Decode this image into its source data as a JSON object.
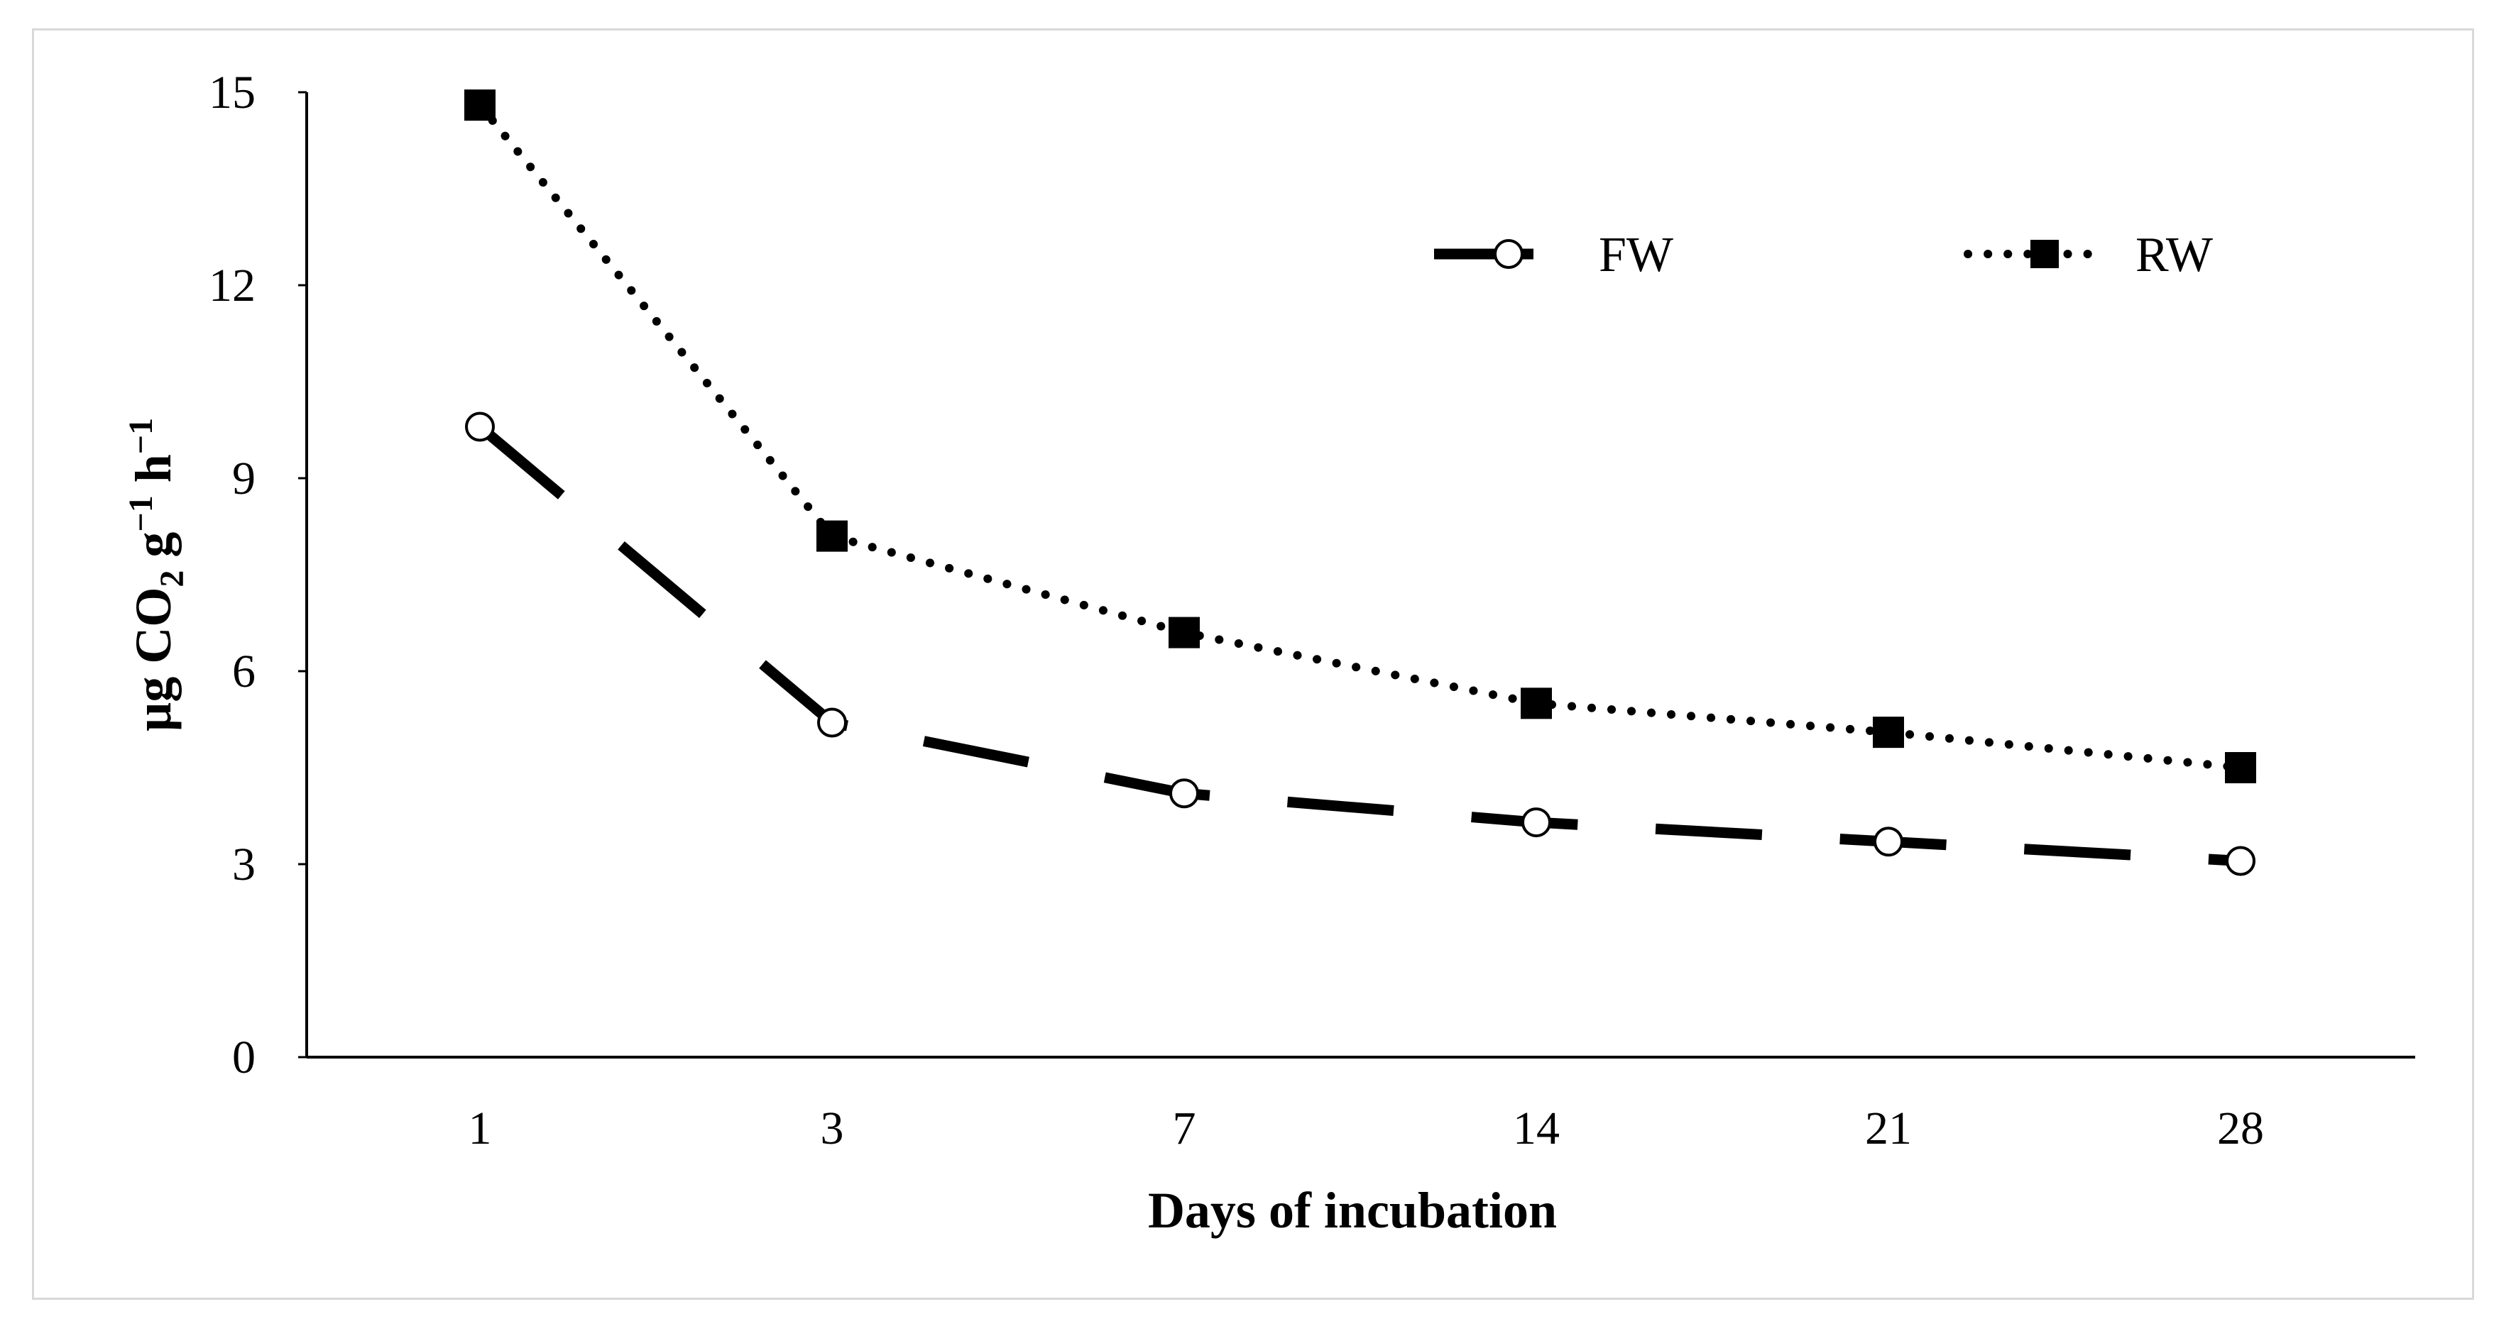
{
  "chart_data": {
    "type": "line",
    "title": "",
    "xlabel": "Days of incubation",
    "ylabel": {
      "prefix": "µg CO",
      "sub": "2",
      "mid": " g",
      "sup1": "−1",
      "mid2": " h",
      "sup2": "−1"
    },
    "categories": [
      "1",
      "3",
      "7",
      "14",
      "21",
      "28"
    ],
    "ylim": [
      0,
      15
    ],
    "yticks": [
      0,
      3,
      6,
      9,
      12,
      15
    ],
    "grid": false,
    "legend_position": "top-right",
    "series": [
      {
        "name": "FW",
        "line_style": "long-dash",
        "marker": "open-circle",
        "values": [
          9.8,
          5.2,
          4.1,
          3.65,
          3.35,
          3.05
        ]
      },
      {
        "name": "RW",
        "line_style": "dotted",
        "marker": "filled-square",
        "values": [
          14.8,
          8.1,
          6.6,
          5.5,
          5.05,
          4.5
        ]
      }
    ],
    "colors": {
      "line": "#000000",
      "frame": "#d9d9d9",
      "background": "#ffffff"
    }
  }
}
